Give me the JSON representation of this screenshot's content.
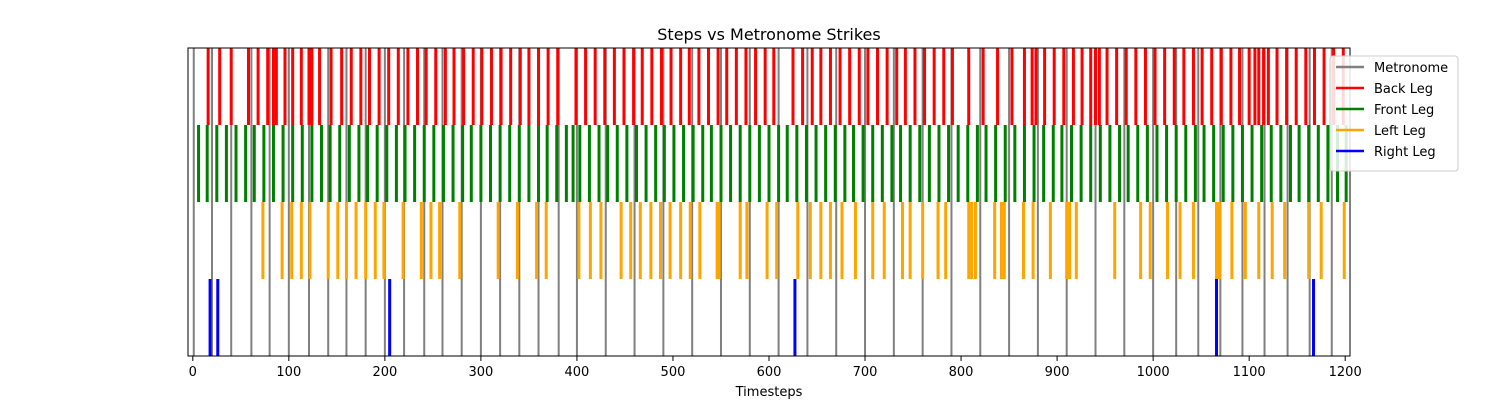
{
  "chart_data": {
    "type": "event_raster",
    "title": "Steps vs Metronome Strikes",
    "xlabel": "Timesteps",
    "ylabel": "",
    "xlim": [
      -5,
      1205
    ],
    "xticks": [
      0,
      100,
      200,
      300,
      400,
      500,
      600,
      700,
      800,
      900,
      1000,
      1100,
      1200
    ],
    "grid": false,
    "legend_position": "upper-right",
    "series": [
      {
        "name": "Metronome",
        "color": "#808080",
        "row": [
          0,
          1
        ],
        "events": [
          1,
          20,
          40,
          61,
          80,
          100,
          121,
          141,
          160,
          180,
          200,
          220,
          241,
          260,
          280,
          300,
          320,
          340,
          360,
          381,
          400,
          430,
          460,
          490,
          520,
          550,
          580,
          610,
          640,
          670,
          700,
          730,
          760,
          790,
          820,
          850,
          880,
          910,
          940,
          970,
          1000,
          1024,
          1047,
          1070,
          1093,
          1116,
          1140,
          1163,
          1186
        ]
      },
      {
        "name": "Back Leg",
        "color": "#ff0000",
        "row": [
          0.75,
          1
        ],
        "events": [
          16,
          28,
          40,
          58,
          68,
          78,
          84,
          87,
          96,
          104,
          113,
          121,
          124,
          132,
          144,
          155,
          165,
          175,
          184,
          194,
          204,
          214,
          224,
          234,
          243,
          253,
          263,
          272,
          282,
          292,
          301,
          311,
          321,
          331,
          341,
          350,
          360,
          370,
          380,
          399,
          409,
          419,
          429,
          439,
          449,
          459,
          468,
          478,
          488,
          498,
          508,
          517,
          527,
          537,
          547,
          556,
          566,
          576,
          586,
          596,
          605,
          625,
          635,
          645,
          654,
          664,
          674,
          684,
          694,
          703,
          713,
          723,
          733,
          742,
          752,
          762,
          772,
          782,
          791,
          808,
          823,
          838,
          853,
          866,
          874,
          878,
          887,
          897,
          907,
          917,
          926,
          935,
          940,
          944,
          952,
          962,
          972,
          982,
          992,
          1002,
          1012,
          1022,
          1032,
          1042,
          1051,
          1061,
          1071,
          1081,
          1090,
          1100,
          1106,
          1110,
          1115,
          1120,
          1129,
          1139,
          1149,
          1159,
          1168,
          1178,
          1188,
          1198
        ]
      },
      {
        "name": "Front Leg",
        "color": "#008000",
        "row": [
          0.5,
          0.75
        ],
        "events": [
          6,
          15,
          25,
          35,
          45,
          55,
          64,
          74,
          84,
          94,
          104,
          114,
          124,
          134,
          143,
          153,
          163,
          173,
          182,
          192,
          202,
          212,
          221,
          231,
          241,
          251,
          261,
          271,
          281,
          290,
          300,
          310,
          320,
          330,
          340,
          350,
          360,
          369,
          379,
          389,
          396,
          403,
          413,
          423,
          432,
          442,
          452,
          462,
          472,
          482,
          491,
          501,
          511,
          521,
          531,
          540,
          550,
          560,
          570,
          580,
          590,
          600,
          610,
          619,
          629,
          639,
          649,
          659,
          669,
          679,
          688,
          698,
          708,
          718,
          728,
          737,
          747,
          757,
          767,
          777,
          787,
          797,
          807,
          817,
          826,
          836,
          846,
          856,
          866,
          876,
          886,
          896,
          905,
          915,
          925,
          935,
          945,
          955,
          965,
          974,
          984,
          994,
          1004,
          1014,
          1024,
          1034,
          1044,
          1053,
          1063,
          1073,
          1083,
          1093,
          1103,
          1113,
          1123,
          1133,
          1143,
          1152,
          1162,
          1172,
          1182,
          1192,
          1201
        ]
      },
      {
        "name": "Left Leg",
        "color": "#ffa500",
        "row": [
          0.25,
          0.5
        ],
        "events": [
          73,
          93,
          103,
          113,
          122,
          141,
          151,
          160,
          170,
          180,
          190,
          199,
          219,
          238,
          248,
          257,
          278,
          318,
          338,
          358,
          368,
          402,
          414,
          425,
          446,
          456,
          466,
          477,
          487,
          497,
          508,
          518,
          528,
          546,
          548,
          570,
          577,
          598,
          608,
          630,
          643,
          654,
          664,
          676,
          690,
          708,
          720,
          739,
          747,
          760,
          776,
          784,
          808,
          811,
          815,
          835,
          842,
          845,
          865,
          875,
          893,
          910,
          913,
          920,
          960,
          987,
          997,
          1015,
          1028,
          1042,
          1066,
          1069,
          1082,
          1096,
          1110,
          1124,
          1137,
          1162,
          1175,
          1199
        ]
      },
      {
        "name": "Right Leg",
        "color": "#0000ff",
        "row": [
          0,
          0.25
        ],
        "events": [
          18,
          26,
          205,
          627,
          1066,
          1167
        ]
      }
    ]
  }
}
